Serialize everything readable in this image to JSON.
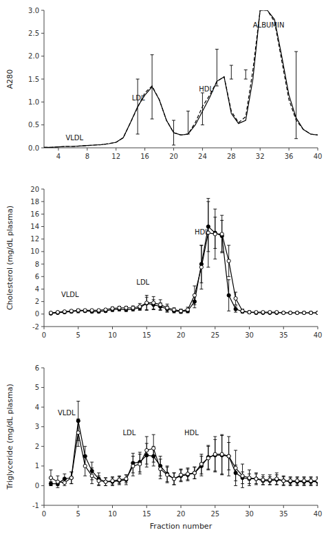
{
  "chart_data": [
    {
      "type": "line",
      "ylabel": "A280",
      "xlim": [
        2,
        40
      ],
      "ylim": [
        0,
        3.0
      ],
      "yticks": [
        {
          "value": 0,
          "label": "0.0"
        },
        0.5,
        {
          "value": 1.0,
          "label": "1.0"
        },
        1.5,
        {
          "value": 2.0,
          "label": "2.0"
        },
        2.5,
        {
          "value": 3.0,
          "label": "3.0"
        }
      ],
      "xticks": [
        4,
        8,
        12,
        16,
        20,
        24,
        28,
        32,
        36,
        40
      ],
      "annotations": [
        {
          "text": "VLDL",
          "x": 5.0,
          "y": 0.13
        },
        {
          "text": "LDL",
          "x": 14.2,
          "y": 1.0
        },
        {
          "text": "HDL",
          "x": 23.5,
          "y": 1.2
        },
        {
          "text": "ALBUMIN",
          "x": 31.0,
          "y": 2.6
        }
      ],
      "series": [
        {
          "color": "black",
          "line_style": "solid",
          "x": [
            2,
            3,
            4,
            5,
            6,
            7,
            8,
            9,
            10,
            11,
            12,
            13,
            14,
            15,
            16,
            17,
            18,
            19,
            20,
            21,
            22,
            23,
            24,
            25,
            26,
            27,
            28,
            29,
            30,
            31,
            32,
            33,
            34,
            35,
            36,
            37,
            38,
            39,
            40
          ],
          "values": [
            0.01,
            0.01,
            0.02,
            0.03,
            0.03,
            0.04,
            0.05,
            0.06,
            0.07,
            0.09,
            0.12,
            0.22,
            0.55,
            0.9,
            1.15,
            1.33,
            1.05,
            0.6,
            0.33,
            0.28,
            0.3,
            0.5,
            0.8,
            1.1,
            1.45,
            1.55,
            0.75,
            0.53,
            0.6,
            1.5,
            3.0,
            3.0,
            2.8,
            2.0,
            1.15,
            0.65,
            0.4,
            0.3,
            0.28
          ]
        },
        {
          "color": "black",
          "line_style": "dashed",
          "x": [
            2,
            3,
            4,
            5,
            6,
            7,
            8,
            9,
            10,
            11,
            12,
            13,
            14,
            15,
            16,
            17,
            18,
            19,
            20,
            21,
            22,
            23,
            24,
            25,
            26,
            27,
            28,
            29,
            30,
            31,
            32,
            33,
            34,
            35,
            36,
            37,
            38,
            39,
            40
          ],
          "values": [
            0.01,
            0.01,
            0.02,
            0.03,
            0.03,
            0.04,
            0.05,
            0.06,
            0.07,
            0.09,
            0.12,
            0.22,
            0.55,
            0.88,
            1.2,
            1.35,
            1.05,
            0.6,
            0.33,
            0.28,
            0.3,
            0.55,
            0.9,
            1.15,
            1.45,
            1.55,
            0.8,
            0.55,
            0.68,
            1.7,
            3.0,
            3.0,
            2.75,
            1.9,
            1.05,
            0.6,
            0.4,
            0.3,
            0.28
          ]
        },
        {
          "type": "errorbar",
          "color": "black",
          "x": [
            15,
            17,
            20,
            22,
            24,
            26,
            28,
            30,
            37
          ],
          "values": [
            0.9,
            1.33,
            0.33,
            0.55,
            0.85,
            1.75,
            1.65,
            1.6,
            1.15
          ],
          "errors": [
            0.6,
            0.7,
            0.27,
            0.25,
            0.35,
            0.4,
            0.15,
            0.1,
            0.95
          ]
        }
      ]
    },
    {
      "type": "line",
      "ylabel": "Cholesterol (mg/dL plasma)",
      "xlim": [
        0,
        40
      ],
      "ylim": [
        -2,
        20
      ],
      "yticks": [
        -2,
        0,
        2,
        4,
        6,
        8,
        10,
        12,
        14,
        16,
        18,
        20
      ],
      "xticks": [
        0,
        5,
        10,
        15,
        20,
        25,
        30,
        35,
        40
      ],
      "annotations": [
        {
          "text": "VLDL",
          "x": 2.5,
          "y": 2.5
        },
        {
          "text": "LDL",
          "x": 13.5,
          "y": 4.5
        },
        {
          "text": "HDL",
          "x": 22.0,
          "y": 12.5
        }
      ],
      "series": [
        {
          "color": "black",
          "line_style": "solid",
          "marker": "circle",
          "x": [
            1,
            2,
            3,
            4,
            5,
            6,
            7,
            8,
            9,
            10,
            11,
            12,
            13,
            14,
            15,
            16,
            17,
            18,
            19,
            20,
            21,
            22,
            23,
            24,
            25,
            26,
            27,
            28,
            29,
            30,
            31,
            32,
            33,
            34,
            35,
            36,
            37,
            38,
            39,
            40
          ],
          "values": [
            0.1,
            0.2,
            0.3,
            0.4,
            0.5,
            0.5,
            0.4,
            0.4,
            0.5,
            0.7,
            0.8,
            0.7,
            0.8,
            1.0,
            1.7,
            1.5,
            1.2,
            0.8,
            0.5,
            0.4,
            0.5,
            2.0,
            8.0,
            14.0,
            13.0,
            12.5,
            3.0,
            0.8,
            0.4,
            0.3,
            0.2,
            0.2,
            0.2,
            0.2,
            0.2,
            0.2,
            0.2,
            0.2,
            0.2,
            0.2
          ],
          "errors": [
            0.15,
            0.15,
            0.2,
            0.2,
            0.3,
            0.2,
            0.2,
            0.2,
            0.2,
            0.3,
            0.3,
            0.3,
            0.3,
            0.4,
            1.0,
            0.8,
            0.6,
            0.5,
            0.3,
            0.3,
            0.3,
            1.0,
            3.0,
            4.0,
            2.5,
            2.5,
            2.5,
            0.5,
            0.2,
            0.2,
            0.2,
            0.15,
            0.15,
            0.15,
            0.15,
            0.15,
            0.15,
            0.15,
            0.15,
            0.15
          ]
        },
        {
          "color": "black",
          "line_style": "solid",
          "marker": "open-circle",
          "x": [
            1,
            2,
            3,
            4,
            5,
            6,
            7,
            8,
            9,
            10,
            11,
            12,
            13,
            14,
            15,
            16,
            17,
            18,
            19,
            20,
            21,
            22,
            23,
            24,
            25,
            26,
            27,
            28,
            29,
            30,
            31,
            32,
            33,
            34,
            35,
            36,
            37,
            38,
            39,
            40
          ],
          "values": [
            0.2,
            0.3,
            0.4,
            0.5,
            0.6,
            0.6,
            0.6,
            0.6,
            0.7,
            0.9,
            1.0,
            1.0,
            1.0,
            1.2,
            1.8,
            1.8,
            1.5,
            1.0,
            0.7,
            0.5,
            0.7,
            3.0,
            7.5,
            13.0,
            12.8,
            12.8,
            8.5,
            2.5,
            0.5,
            0.3,
            0.3,
            0.3,
            0.3,
            0.3,
            0.2,
            0.2,
            0.2,
            0.2,
            0.2,
            0.2
          ],
          "errors": [
            0.1,
            0.1,
            0.15,
            0.15,
            0.2,
            0.15,
            0.15,
            0.15,
            0.2,
            0.25,
            0.25,
            0.25,
            0.3,
            0.5,
            1.2,
            1.0,
            0.8,
            0.6,
            0.3,
            0.3,
            0.4,
            1.5,
            3.5,
            5.5,
            4.0,
            3.0,
            2.5,
            1.0,
            0.3,
            0.2,
            0.15,
            0.15,
            0.15,
            0.15,
            0.15,
            0.15,
            0.15,
            0.15,
            0.15,
            0.15
          ]
        }
      ]
    },
    {
      "type": "line",
      "ylabel": "Triglyceride (mg/dL plasma)",
      "xlabel": "Fraction number",
      "xlim": [
        0,
        40
      ],
      "ylim": [
        -1,
        6
      ],
      "yticks": [
        -1,
        0,
        1,
        2,
        3,
        4,
        5,
        6
      ],
      "xticks": [
        0,
        5,
        10,
        15,
        20,
        25,
        30,
        35,
        40
      ],
      "annotations": [
        {
          "text": "VLDL",
          "x": 2.0,
          "y": 3.5
        },
        {
          "text": "LDL",
          "x": 11.5,
          "y": 2.5
        },
        {
          "text": "HDL",
          "x": 20.5,
          "y": 2.5
        }
      ],
      "series": [
        {
          "color": "black",
          "line_style": "solid",
          "marker": "circle",
          "x": [
            1,
            2,
            3,
            4,
            5,
            6,
            7,
            8,
            9,
            10,
            11,
            12,
            13,
            14,
            15,
            16,
            17,
            18,
            19,
            20,
            21,
            22,
            23,
            24,
            25,
            26,
            27,
            28,
            29,
            30,
            31,
            32,
            33,
            34,
            35,
            36,
            37,
            38,
            39,
            40
          ],
          "values": [
            0.1,
            0.1,
            0.35,
            0.4,
            3.3,
            1.5,
            0.75,
            0.35,
            0.2,
            0.2,
            0.25,
            0.3,
            1.15,
            1.2,
            1.55,
            1.5,
            1.0,
            0.6,
            0.35,
            0.5,
            0.55,
            0.65,
            1.0,
            1.45,
            1.55,
            1.55,
            1.5,
            0.65,
            0.4,
            0.35,
            0.35,
            0.25,
            0.25,
            0.3,
            0.25,
            0.2,
            0.2,
            0.2,
            0.2,
            0.2
          ],
          "errors": [
            0.1,
            0.1,
            0.25,
            0.3,
            1.0,
            0.5,
            0.45,
            0.3,
            0.2,
            0.2,
            0.2,
            0.25,
            0.5,
            0.5,
            0.6,
            0.5,
            0.5,
            0.4,
            0.3,
            0.3,
            0.3,
            0.3,
            0.5,
            0.6,
            0.8,
            1.0,
            0.7,
            0.4,
            0.3,
            0.25,
            0.25,
            0.2,
            0.2,
            0.25,
            0.2,
            0.2,
            0.2,
            0.2,
            0.2,
            0.2
          ]
        },
        {
          "color": "black",
          "line_style": "solid",
          "marker": "open-circle",
          "x": [
            1,
            2,
            3,
            4,
            5,
            6,
            7,
            8,
            9,
            10,
            11,
            12,
            13,
            14,
            15,
            16,
            17,
            18,
            19,
            20,
            21,
            22,
            23,
            24,
            25,
            26,
            27,
            28,
            29,
            30,
            31,
            32,
            33,
            34,
            35,
            36,
            37,
            38,
            39,
            40
          ],
          "values": [
            0.4,
            0.2,
            0.15,
            0.4,
            2.7,
            1.0,
            0.5,
            0.25,
            0.2,
            0.25,
            0.3,
            0.35,
            1.0,
            1.1,
            1.8,
            1.9,
            0.85,
            0.55,
            0.35,
            0.55,
            0.6,
            0.65,
            1.1,
            1.4,
            1.6,
            1.6,
            1.5,
            0.9,
            0.5,
            0.4,
            0.35,
            0.3,
            0.3,
            0.35,
            0.25,
            0.25,
            0.25,
            0.25,
            0.25,
            0.25
          ],
          "errors": [
            0.4,
            0.3,
            0.15,
            0.3,
            0.7,
            0.5,
            0.4,
            0.25,
            0.2,
            0.2,
            0.2,
            0.2,
            0.5,
            0.5,
            0.7,
            0.7,
            0.5,
            0.4,
            0.3,
            0.3,
            0.3,
            0.3,
            0.5,
            0.6,
            0.9,
            1.0,
            1.0,
            0.9,
            0.6,
            0.4,
            0.3,
            0.25,
            0.25,
            0.3,
            0.25,
            0.2,
            0.2,
            0.2,
            0.2,
            0.2
          ]
        }
      ]
    }
  ]
}
